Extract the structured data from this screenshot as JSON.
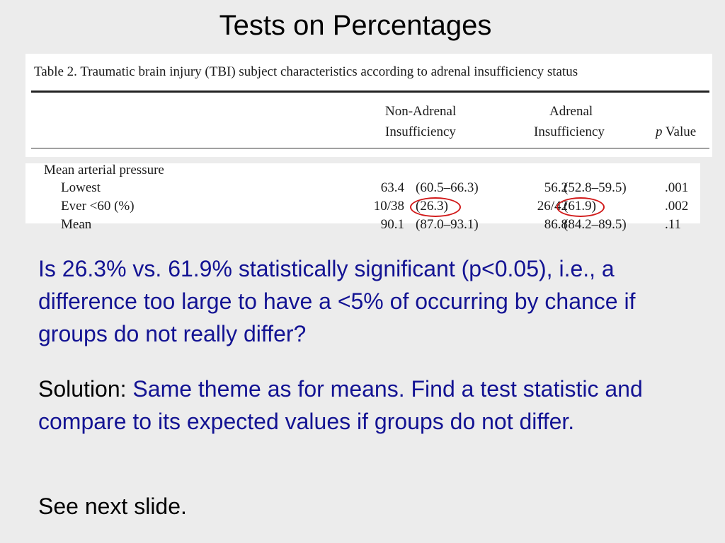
{
  "slide": {
    "title": "Tests on Percentages"
  },
  "table": {
    "caption": "Table 2. Traumatic brain injury (TBI) subject characteristics according to adrenal insufficiency status",
    "headers": {
      "non_adrenal_line1": "Non-Adrenal",
      "non_adrenal_line2": "Insufficiency",
      "adrenal_line1": "Adrenal",
      "adrenal_line2": "Insufficiency",
      "p_italic": "p",
      "p_rest": " Value"
    },
    "section_label": "Mean arterial pressure",
    "rows": [
      {
        "label": "Lowest",
        "non_adrenal_value": "63.4",
        "non_adrenal_ci": "(60.5–66.3)",
        "adrenal_value": "56.2",
        "adrenal_ci": "(52.8–59.5)",
        "p_value": ".001"
      },
      {
        "label": "Ever <60 (%)",
        "non_adrenal_value": "10/38",
        "non_adrenal_ci": "(26.3)",
        "adrenal_value": "26/42",
        "adrenal_ci": "(61.9)",
        "p_value": ".002"
      },
      {
        "label": "Mean",
        "non_adrenal_value": "90.1",
        "non_adrenal_ci": "(87.0–93.1)",
        "adrenal_value": "86.8",
        "adrenal_ci": "(84.2–89.5)",
        "p_value": ".11"
      }
    ],
    "highlight_color": "#d11a1a"
  },
  "text": {
    "question": "Is 26.3% vs. 61.9% statistically significant (p<0.05), i.e., a difference too large to have a <5% of occurring by chance if groups do not really differ?",
    "solution_label": "Solution: ",
    "solution_body": "Same theme as for means. Find a test statistic and compare to its expected values if groups do not differ.",
    "see_next": "See next slide."
  },
  "colors": {
    "background": "#ececec",
    "accent_text": "#131393",
    "plain_text": "#000000"
  }
}
